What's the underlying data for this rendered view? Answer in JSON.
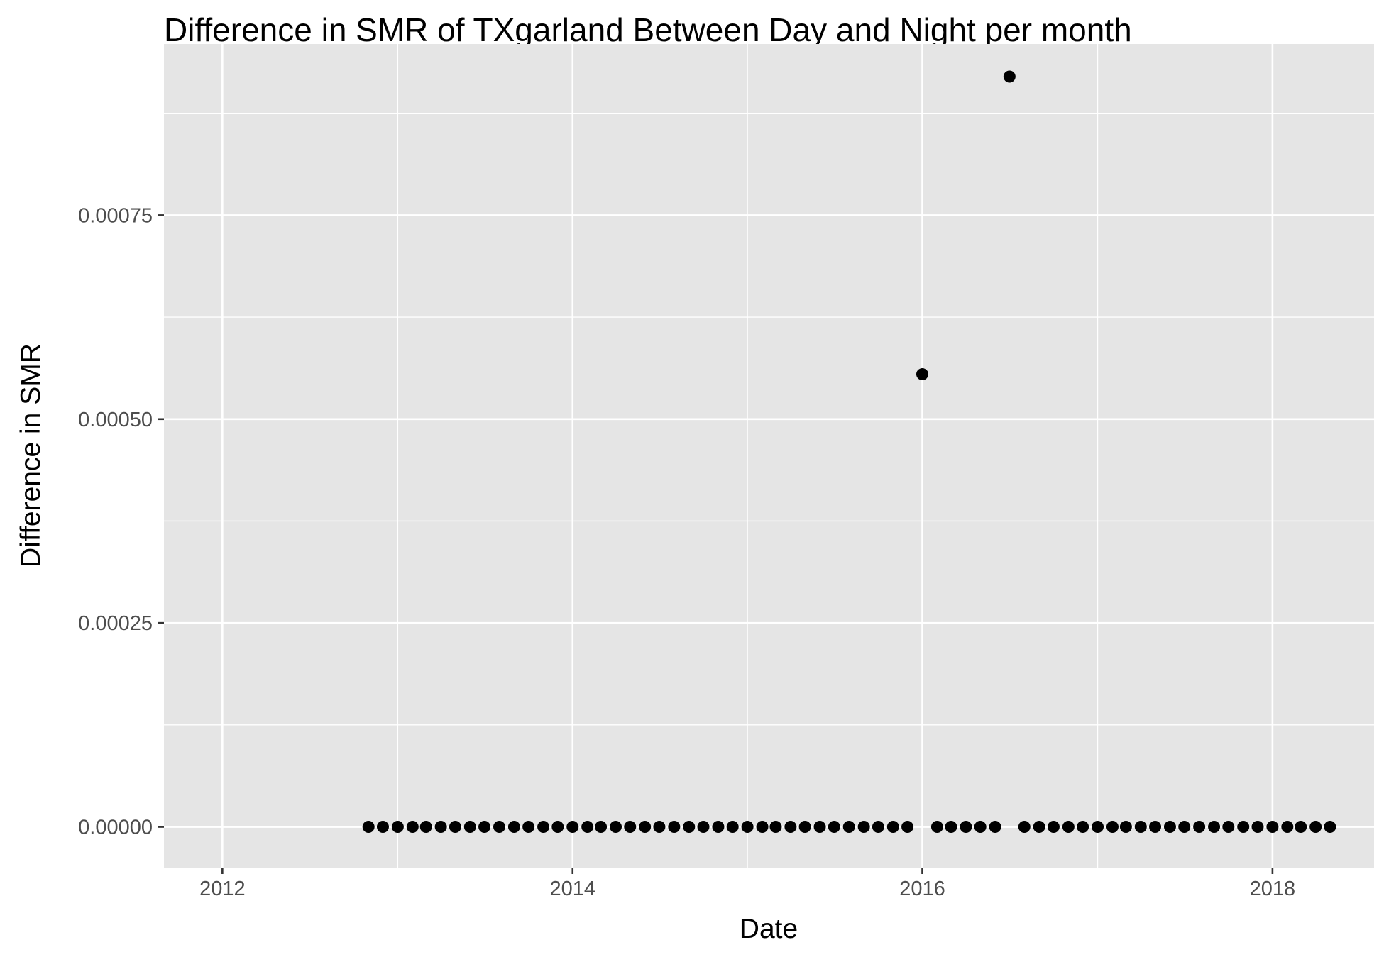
{
  "chart_data": {
    "type": "scatter",
    "title": "Difference in SMR of TXgarland Between Day and Night per month",
    "xlabel": "Date",
    "ylabel": "Difference in SMR",
    "x_axis_type": "date",
    "xlim": [
      "2011-09-01",
      "2018-08-01"
    ],
    "ylim": [
      -5e-05,
      0.00096
    ],
    "x_ticks": [
      "2012",
      "2014",
      "2016",
      "2018"
    ],
    "y_ticks": [
      "0.00000",
      "0.00025",
      "0.00050",
      "0.00075"
    ],
    "grid": true,
    "legend": "none",
    "colors": {
      "panel": "#e5e5e5",
      "grid": "#ffffff",
      "point": "#000000",
      "tick_text": "#4d4d4d"
    },
    "series": [
      {
        "x": [
          "2012-11-01",
          "2012-12-01",
          "2013-01-01",
          "2013-02-01",
          "2013-03-01",
          "2013-04-01",
          "2013-05-01",
          "2013-06-01",
          "2013-07-01",
          "2013-08-01",
          "2013-09-01",
          "2013-10-01",
          "2013-11-01",
          "2013-12-01",
          "2014-01-01",
          "2014-02-01",
          "2014-03-01",
          "2014-04-01",
          "2014-05-01",
          "2014-06-01",
          "2014-07-01",
          "2014-08-01",
          "2014-09-01",
          "2014-10-01",
          "2014-11-01",
          "2014-12-01",
          "2015-01-01",
          "2015-02-01",
          "2015-03-01",
          "2015-04-01",
          "2015-05-01",
          "2015-06-01",
          "2015-07-01",
          "2015-08-01",
          "2015-09-01",
          "2015-10-01",
          "2015-11-01",
          "2015-12-01",
          "2016-01-01",
          "2016-02-01",
          "2016-03-01",
          "2016-04-01",
          "2016-05-01",
          "2016-06-01",
          "2016-07-01",
          "2016-08-01",
          "2016-09-01",
          "2016-10-01",
          "2016-11-01",
          "2016-12-01",
          "2017-01-01",
          "2017-02-01",
          "2017-03-01",
          "2017-04-01",
          "2017-05-01",
          "2017-06-01",
          "2017-07-01",
          "2017-08-01",
          "2017-09-01",
          "2017-10-01",
          "2017-11-01",
          "2017-12-01",
          "2018-01-01",
          "2018-02-01",
          "2018-03-01",
          "2018-04-01",
          "2018-05-01"
        ],
        "y": [
          0,
          0,
          0,
          0,
          0,
          0,
          0,
          0,
          0,
          0,
          0,
          0,
          0,
          0,
          0,
          0,
          0,
          0,
          0,
          0,
          0,
          0,
          0,
          0,
          0,
          0,
          0,
          0,
          0,
          0,
          0,
          0,
          0,
          0,
          0,
          0,
          0,
          0,
          0.000555,
          0,
          0,
          0,
          0,
          0,
          0.00092,
          0,
          0,
          0,
          0,
          0,
          0,
          0,
          0,
          0,
          0,
          0,
          0,
          0,
          0,
          0,
          0,
          0,
          0,
          0,
          0,
          0,
          0
        ]
      }
    ]
  }
}
